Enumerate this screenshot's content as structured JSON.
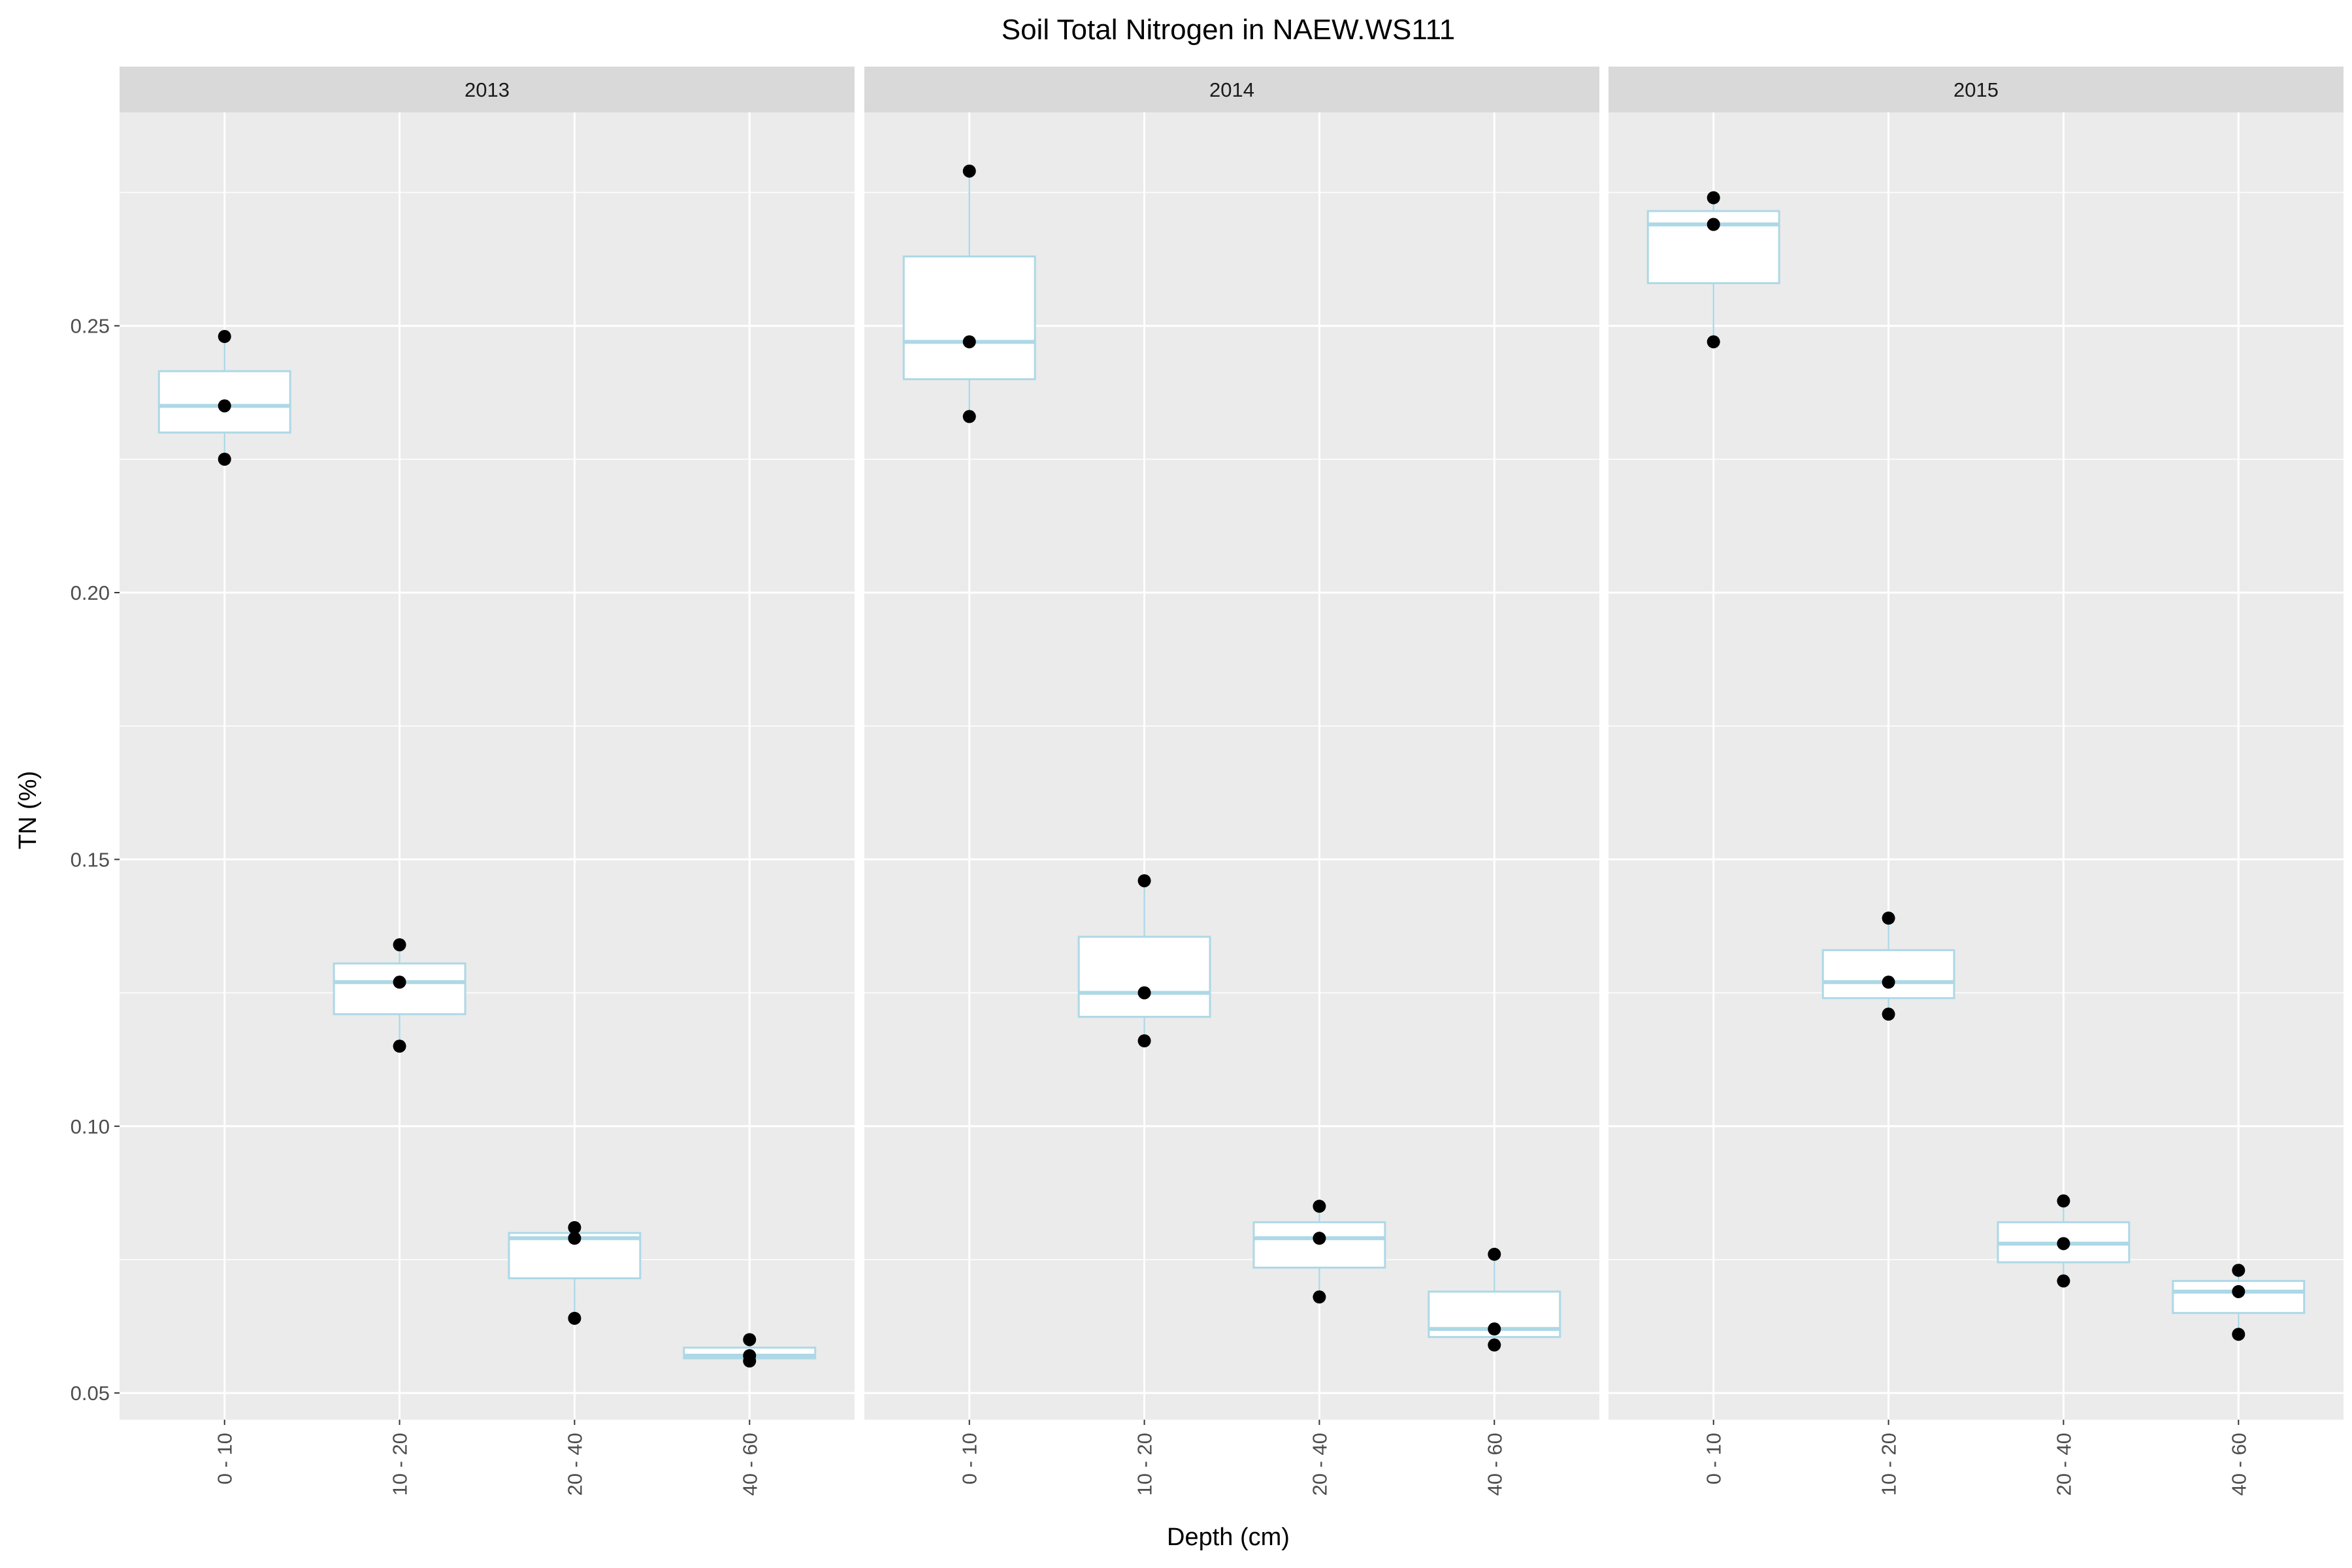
{
  "chart_data": {
    "type": "box",
    "title": "Soil Total Nitrogen in NAEW.WS111",
    "xlabel": "Depth (cm)",
    "ylabel": "TN (%)",
    "categories": [
      "0 - 10",
      "10 - 20",
      "20 - 40",
      "40 - 60"
    ],
    "y_ticks": [
      0.05,
      0.1,
      0.15,
      0.2,
      0.25
    ],
    "y_tick_labels": [
      "0.05",
      "0.10",
      "0.15",
      "0.20",
      "0.25"
    ],
    "ylim": [
      0.045,
      0.29
    ],
    "grid": true,
    "box_color": "#add8e6",
    "point_color": "#000000",
    "panel_background": "#ebebeb",
    "strip_background": "#d9d9d9",
    "facets": [
      {
        "label": "2013",
        "boxes": [
          {
            "category": "0 - 10",
            "whisker_low": 0.225,
            "q1": 0.23,
            "median": 0.235,
            "q3": 0.2415,
            "whisker_high": 0.248,
            "points": [
              0.225,
              0.235,
              0.248
            ]
          },
          {
            "category": "10 - 20",
            "whisker_low": 0.115,
            "q1": 0.121,
            "median": 0.127,
            "q3": 0.1305,
            "whisker_high": 0.134,
            "points": [
              0.115,
              0.127,
              0.134
            ]
          },
          {
            "category": "20 - 40",
            "whisker_low": 0.064,
            "q1": 0.0715,
            "median": 0.079,
            "q3": 0.08,
            "whisker_high": 0.081,
            "points": [
              0.064,
              0.079,
              0.081
            ]
          },
          {
            "category": "40 - 60",
            "whisker_low": 0.056,
            "q1": 0.0565,
            "median": 0.057,
            "q3": 0.0585,
            "whisker_high": 0.06,
            "points": [
              0.056,
              0.057,
              0.06
            ]
          }
        ]
      },
      {
        "label": "2014",
        "boxes": [
          {
            "category": "0 - 10",
            "whisker_low": 0.233,
            "q1": 0.24,
            "median": 0.247,
            "q3": 0.263,
            "whisker_high": 0.279,
            "points": [
              0.233,
              0.247,
              0.279
            ]
          },
          {
            "category": "10 - 20",
            "whisker_low": 0.116,
            "q1": 0.1205,
            "median": 0.125,
            "q3": 0.1355,
            "whisker_high": 0.146,
            "points": [
              0.116,
              0.125,
              0.146
            ]
          },
          {
            "category": "20 - 40",
            "whisker_low": 0.068,
            "q1": 0.0735,
            "median": 0.079,
            "q3": 0.082,
            "whisker_high": 0.085,
            "points": [
              0.068,
              0.079,
              0.085
            ]
          },
          {
            "category": "40 - 60",
            "whisker_low": 0.059,
            "q1": 0.0605,
            "median": 0.062,
            "q3": 0.069,
            "whisker_high": 0.076,
            "points": [
              0.059,
              0.062,
              0.076
            ]
          }
        ]
      },
      {
        "label": "2015",
        "boxes": [
          {
            "category": "0 - 10",
            "whisker_low": 0.247,
            "q1": 0.258,
            "median": 0.269,
            "q3": 0.2715,
            "whisker_high": 0.274,
            "points": [
              0.247,
              0.269,
              0.274
            ]
          },
          {
            "category": "10 - 20",
            "whisker_low": 0.121,
            "q1": 0.124,
            "median": 0.127,
            "q3": 0.133,
            "whisker_high": 0.139,
            "points": [
              0.121,
              0.127,
              0.139
            ]
          },
          {
            "category": "20 - 40",
            "whisker_low": 0.071,
            "q1": 0.0745,
            "median": 0.078,
            "q3": 0.082,
            "whisker_high": 0.086,
            "points": [
              0.071,
              0.078,
              0.086
            ]
          },
          {
            "category": "40 - 60",
            "whisker_low": 0.061,
            "q1": 0.065,
            "median": 0.069,
            "q3": 0.071,
            "whisker_high": 0.073,
            "points": [
              0.061,
              0.069,
              0.073
            ]
          }
        ]
      }
    ]
  }
}
